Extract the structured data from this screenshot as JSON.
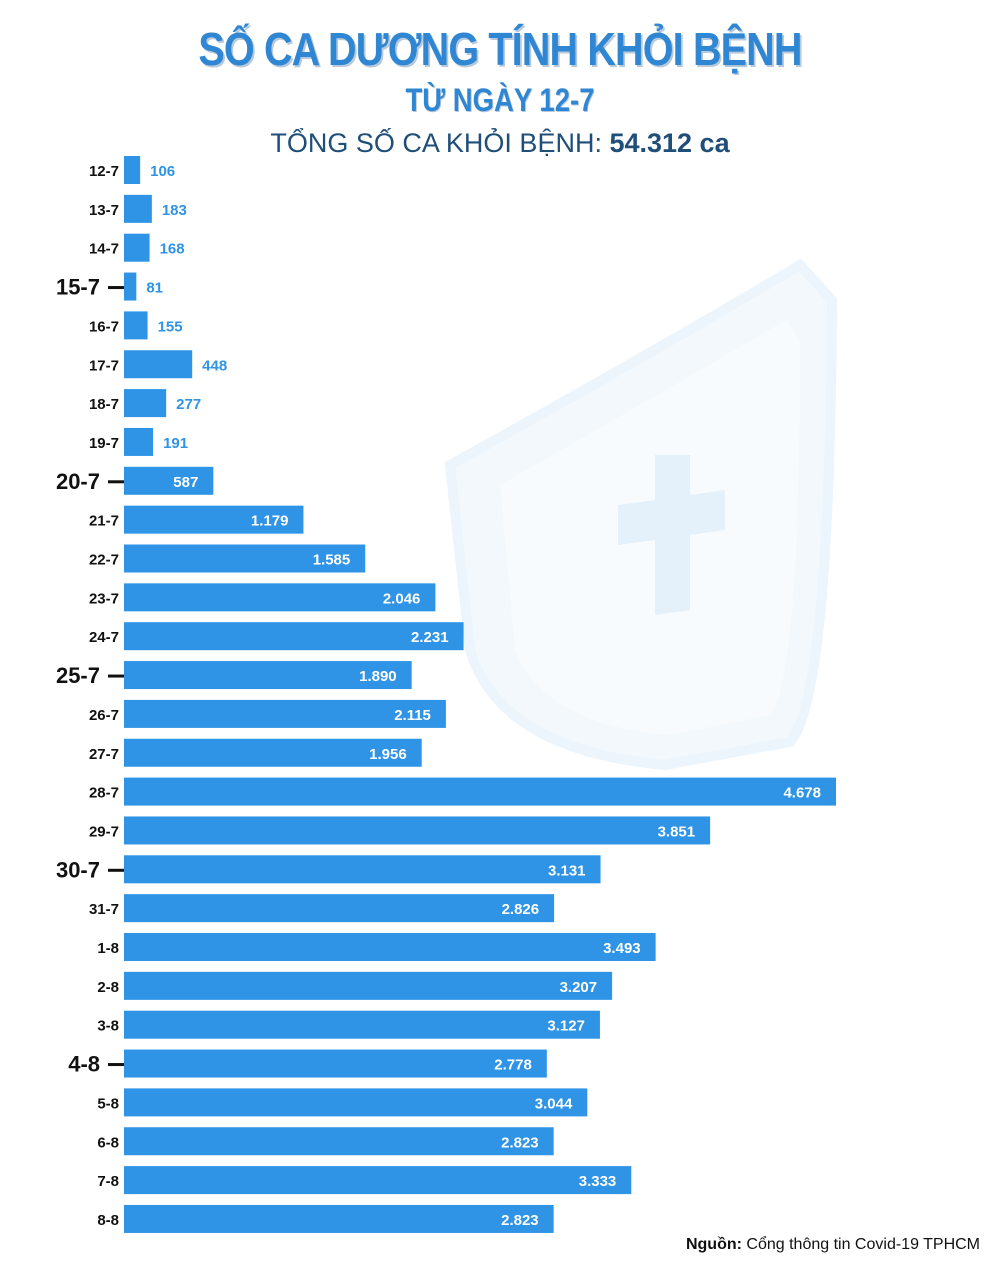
{
  "header": {
    "title": "SỐ CA DƯƠNG TÍNH KHỎI BỆNH",
    "subtitle": "TỪ NGÀY 12-7",
    "total_label": "TỔNG SỐ CA KHỎI BỆNH:",
    "total_value": "54.312 ca"
  },
  "footer": {
    "source_label": "Nguồn:",
    "source_text": "Cổng thông tin Covid-19 TPHCM"
  },
  "colors": {
    "bar": "#2f94e6",
    "title": "#2f86d3",
    "label_outside": "#2f94e6",
    "label_inside": "#ffffff",
    "axis_text": "#111111"
  },
  "chart_data": {
    "type": "bar",
    "orientation": "horizontal",
    "title": "SỐ CA DƯƠNG TÍNH KHỎI BỆNH",
    "xlabel": "",
    "ylabel": "",
    "categories": [
      "12-7",
      "13-7",
      "14-7",
      "15-7",
      "16-7",
      "17-7",
      "18-7",
      "19-7",
      "20-7",
      "21-7",
      "22-7",
      "23-7",
      "24-7",
      "25-7",
      "26-7",
      "27-7",
      "28-7",
      "29-7",
      "30-7",
      "31-7",
      "1-8",
      "2-8",
      "3-8",
      "4-8",
      "5-8",
      "6-8",
      "7-8",
      "8-8"
    ],
    "values": [
      106,
      183,
      168,
      81,
      155,
      448,
      277,
      191,
      587,
      1179,
      1585,
      2046,
      2231,
      1890,
      2115,
      1956,
      4678,
      3851,
      3131,
      2826,
      3493,
      3207,
      3127,
      2778,
      3044,
      2823,
      3333,
      2823
    ],
    "value_labels": [
      "106",
      "183",
      "168",
      "81",
      "155",
      "448",
      "277",
      "191",
      "587",
      "1.179",
      "1.585",
      "2.046",
      "2.231",
      "1.890",
      "2.115",
      "1.956",
      "4.678",
      "3.851",
      "3.131",
      "2.826",
      "3.493",
      "3.207",
      "3.127",
      "2.778",
      "3.044",
      "2.823",
      "3.333",
      "2.823"
    ],
    "emphasized_categories": [
      "15-7",
      "20-7",
      "25-7",
      "30-7",
      "4-8"
    ],
    "xlim": [
      0,
      4678
    ]
  }
}
